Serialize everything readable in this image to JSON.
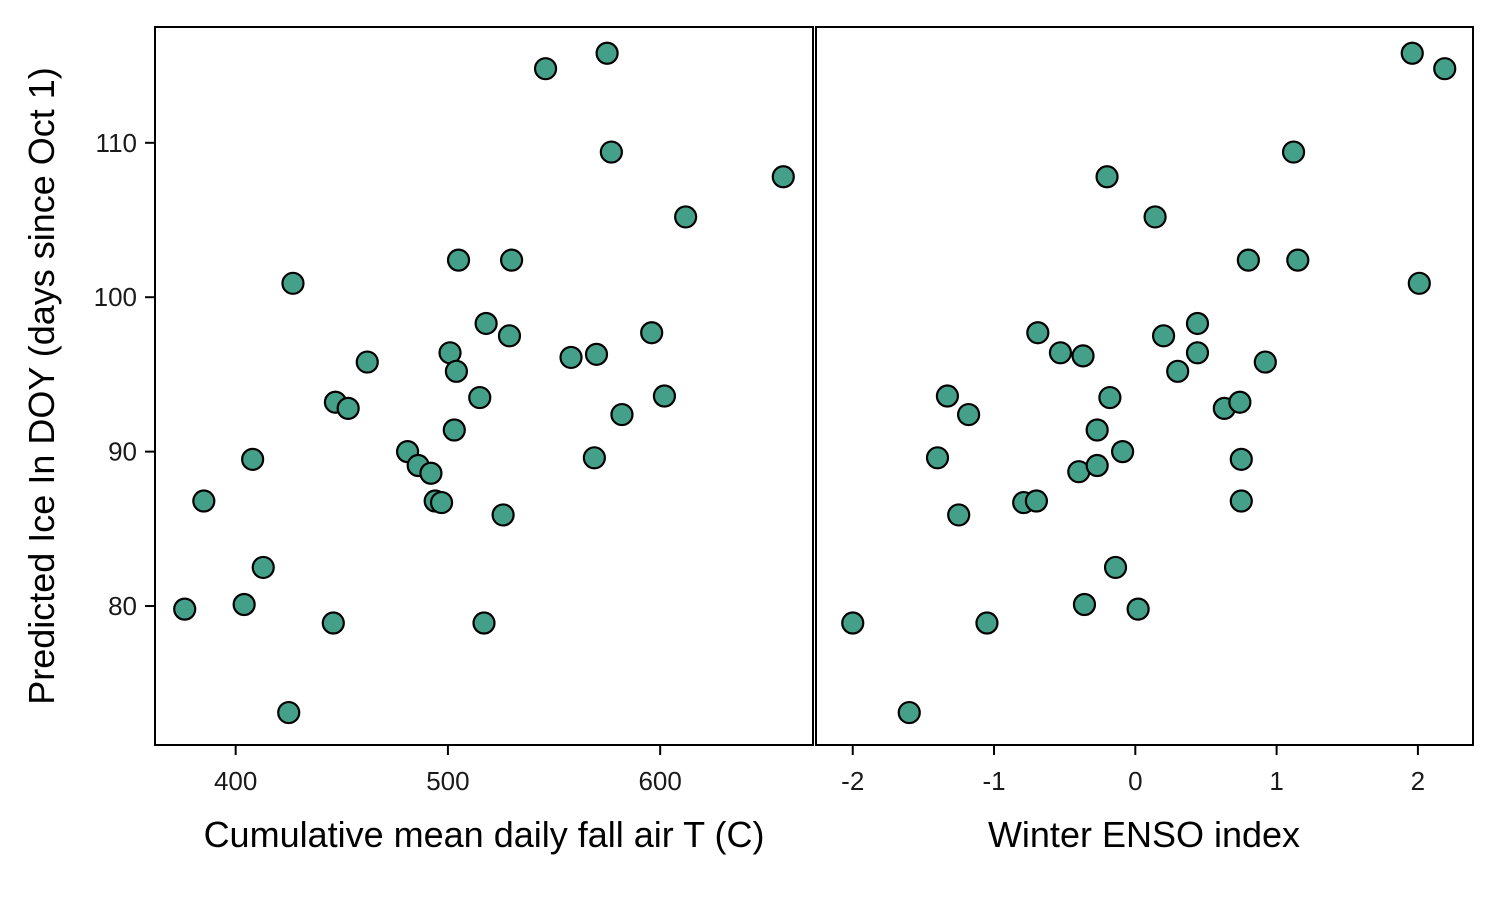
{
  "chart_data": {
    "type": "scatter",
    "ylabel": "Predicted Ice In DOY (days since Oct 1)",
    "ylim": [
      71,
      117.5
    ],
    "yticks": [
      80,
      90,
      100,
      110
    ],
    "point_color": "#45a08a",
    "point_edge_color": "#000000",
    "panels": [
      {
        "name": "air-temperature",
        "xlabel": "Cumulative mean daily fall air T (C)",
        "xlim": [
          362,
          672
        ],
        "xticks": [
          400,
          500,
          600
        ],
        "points": [
          {
            "x": 376,
            "y": 79.8
          },
          {
            "x": 385,
            "y": 86.8
          },
          {
            "x": 404,
            "y": 80.1
          },
          {
            "x": 408,
            "y": 89.5
          },
          {
            "x": 413,
            "y": 82.5
          },
          {
            "x": 425,
            "y": 73.1
          },
          {
            "x": 427,
            "y": 100.9
          },
          {
            "x": 446,
            "y": 78.9
          },
          {
            "x": 447,
            "y": 93.2
          },
          {
            "x": 453,
            "y": 92.8
          },
          {
            "x": 462,
            "y": 95.8
          },
          {
            "x": 481,
            "y": 90.0
          },
          {
            "x": 486,
            "y": 89.1
          },
          {
            "x": 492,
            "y": 88.6
          },
          {
            "x": 494,
            "y": 86.8
          },
          {
            "x": 497,
            "y": 86.7
          },
          {
            "x": 501,
            "y": 96.4
          },
          {
            "x": 503,
            "y": 91.4
          },
          {
            "x": 504,
            "y": 95.2
          },
          {
            "x": 505,
            "y": 102.4
          },
          {
            "x": 515,
            "y": 93.5
          },
          {
            "x": 517,
            "y": 78.9
          },
          {
            "x": 518,
            "y": 98.3
          },
          {
            "x": 526,
            "y": 85.9
          },
          {
            "x": 529,
            "y": 97.5
          },
          {
            "x": 530,
            "y": 102.4
          },
          {
            "x": 546,
            "y": 114.8
          },
          {
            "x": 558,
            "y": 96.1
          },
          {
            "x": 569,
            "y": 89.6
          },
          {
            "x": 570,
            "y": 96.3
          },
          {
            "x": 575,
            "y": 115.8
          },
          {
            "x": 577,
            "y": 109.4
          },
          {
            "x": 582,
            "y": 92.4
          },
          {
            "x": 596,
            "y": 97.7
          },
          {
            "x": 602,
            "y": 93.6
          },
          {
            "x": 612,
            "y": 105.2
          },
          {
            "x": 658,
            "y": 107.8
          }
        ]
      },
      {
        "name": "enso",
        "xlabel": "Winter ENSO index",
        "xlim": [
          -2.26,
          2.39
        ],
        "xticks": [
          -2,
          -1,
          0,
          1,
          2
        ],
        "points": [
          {
            "x": -2.0,
            "y": 78.9
          },
          {
            "x": -1.6,
            "y": 73.1
          },
          {
            "x": -1.4,
            "y": 89.6
          },
          {
            "x": -1.33,
            "y": 93.6
          },
          {
            "x": -1.25,
            "y": 85.9
          },
          {
            "x": -1.18,
            "y": 92.4
          },
          {
            "x": -1.05,
            "y": 78.9
          },
          {
            "x": -0.79,
            "y": 86.7
          },
          {
            "x": -0.7,
            "y": 86.8
          },
          {
            "x": -0.69,
            "y": 97.7
          },
          {
            "x": -0.53,
            "y": 96.4
          },
          {
            "x": -0.4,
            "y": 88.7
          },
          {
            "x": -0.37,
            "y": 96.2
          },
          {
            "x": -0.36,
            "y": 80.1
          },
          {
            "x": -0.27,
            "y": 91.4
          },
          {
            "x": -0.27,
            "y": 89.1
          },
          {
            "x": -0.2,
            "y": 107.8
          },
          {
            "x": -0.18,
            "y": 93.5
          },
          {
            "x": -0.14,
            "y": 82.5
          },
          {
            "x": -0.09,
            "y": 90.0
          },
          {
            "x": 0.02,
            "y": 79.8
          },
          {
            "x": 0.14,
            "y": 105.2
          },
          {
            "x": 0.2,
            "y": 97.5
          },
          {
            "x": 0.3,
            "y": 95.2
          },
          {
            "x": 0.44,
            "y": 98.3
          },
          {
            "x": 0.44,
            "y": 96.4
          },
          {
            "x": 0.63,
            "y": 92.8
          },
          {
            "x": 0.74,
            "y": 93.2
          },
          {
            "x": 0.75,
            "y": 89.5
          },
          {
            "x": 0.75,
            "y": 86.8
          },
          {
            "x": 0.8,
            "y": 102.4
          },
          {
            "x": 0.92,
            "y": 95.8
          },
          {
            "x": 1.12,
            "y": 109.4
          },
          {
            "x": 1.15,
            "y": 102.4
          },
          {
            "x": 1.96,
            "y": 115.8
          },
          {
            "x": 2.01,
            "y": 100.9
          },
          {
            "x": 2.19,
            "y": 114.8
          }
        ]
      }
    ]
  }
}
